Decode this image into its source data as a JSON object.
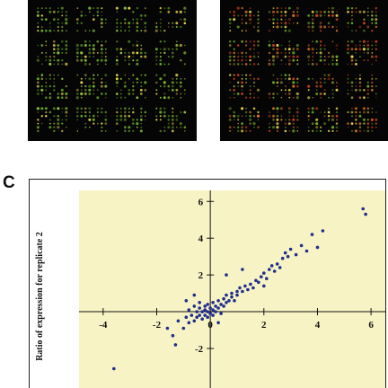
{
  "figure": {
    "panel_letter": "C"
  },
  "colors": {
    "array_background": "#050505",
    "green_spot": "#6fb52a",
    "yellow_spot": "#e8d84a",
    "red_spot": "#d0401c",
    "plot_background": "#f8f3c4",
    "marker": "#1f2f8f"
  },
  "chart_data": {
    "type": "scatter",
    "title": "",
    "xlabel": "",
    "ylabel": "Ratio of expression for replicate 2",
    "xlim": [
      -4.9,
      6.6
    ],
    "ylim": [
      -4.2,
      6.6
    ],
    "x_ticks": [
      -4,
      -2,
      0,
      2,
      4,
      6
    ],
    "y_ticks": [
      -2,
      0,
      2,
      4,
      6
    ],
    "x_tick_labels": [
      "-4",
      "-2",
      "0",
      "2",
      "4",
      "6"
    ],
    "y_tick_labels": [
      "-2",
      "0",
      "2",
      "4",
      "6"
    ],
    "grid": false,
    "points": [
      [
        -3.6,
        -3.1
      ],
      [
        -1.6,
        -0.9
      ],
      [
        -1.4,
        -1.3
      ],
      [
        -1.2,
        -0.5
      ],
      [
        -1.0,
        -0.9
      ],
      [
        -0.9,
        -0.3
      ],
      [
        -0.8,
        0.1
      ],
      [
        -0.8,
        -0.6
      ],
      [
        -0.7,
        -0.2
      ],
      [
        -0.6,
        0.3
      ],
      [
        -0.6,
        -0.5
      ],
      [
        -0.5,
        0.0
      ],
      [
        -0.5,
        -0.3
      ],
      [
        -0.4,
        0.5
      ],
      [
        -0.4,
        0.2
      ],
      [
        -0.4,
        -0.2
      ],
      [
        -0.3,
        0.0
      ],
      [
        -0.3,
        -0.4
      ],
      [
        -0.2,
        0.3
      ],
      [
        -0.2,
        0.1
      ],
      [
        -0.2,
        -0.2
      ],
      [
        -0.1,
        0.4
      ],
      [
        -0.1,
        0.0
      ],
      [
        -0.1,
        -0.3
      ],
      [
        0.0,
        0.2
      ],
      [
        0.0,
        -0.1
      ],
      [
        0.1,
        0.5
      ],
      [
        0.1,
        0.1
      ],
      [
        0.1,
        -0.2
      ],
      [
        0.2,
        0.3
      ],
      [
        0.2,
        0.0
      ],
      [
        0.3,
        0.6
      ],
      [
        0.3,
        0.2
      ],
      [
        0.4,
        0.4
      ],
      [
        0.4,
        -0.1
      ],
      [
        0.5,
        0.7
      ],
      [
        0.5,
        0.3
      ],
      [
        0.6,
        0.5
      ],
      [
        0.6,
        0.9
      ],
      [
        0.7,
        0.6
      ],
      [
        0.8,
        1.0
      ],
      [
        0.8,
        0.8
      ],
      [
        0.9,
        0.6
      ],
      [
        1.0,
        1.1
      ],
      [
        1.0,
        0.9
      ],
      [
        1.1,
        1.3
      ],
      [
        1.2,
        1.1
      ],
      [
        1.3,
        1.4
      ],
      [
        1.4,
        1.2
      ],
      [
        1.5,
        1.5
      ],
      [
        1.6,
        1.3
      ],
      [
        1.7,
        1.7
      ],
      [
        1.8,
        1.6
      ],
      [
        1.9,
        1.9
      ],
      [
        2.0,
        2.1
      ],
      [
        2.1,
        1.8
      ],
      [
        2.2,
        2.3
      ],
      [
        2.3,
        2.5
      ],
      [
        2.4,
        2.2
      ],
      [
        2.5,
        2.6
      ],
      [
        2.6,
        2.4
      ],
      [
        2.7,
        2.9
      ],
      [
        2.8,
        3.2
      ],
      [
        2.9,
        3.0
      ],
      [
        3.0,
        3.4
      ],
      [
        3.2,
        3.1
      ],
      [
        3.4,
        3.6
      ],
      [
        3.6,
        3.3
      ],
      [
        3.8,
        4.2
      ],
      [
        4.0,
        3.5
      ],
      [
        4.2,
        4.4
      ],
      [
        5.7,
        5.6
      ],
      [
        5.8,
        5.3
      ],
      [
        0.6,
        2.0
      ],
      [
        1.2,
        2.3
      ],
      [
        -0.6,
        0.9
      ],
      [
        -1.3,
        -1.8
      ],
      [
        0.3,
        -0.6
      ],
      [
        -0.9,
        0.6
      ],
      [
        2.0,
        1.4
      ]
    ]
  }
}
